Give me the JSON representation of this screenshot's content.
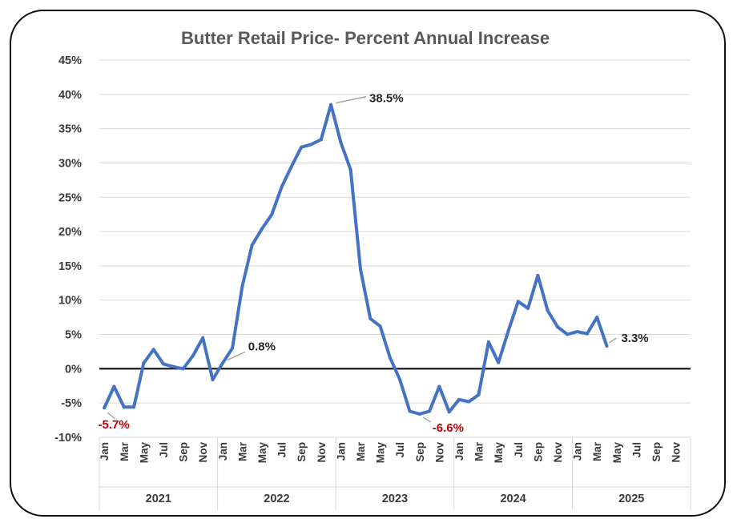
{
  "colors": {
    "line": "#4472C4",
    "grid": "#d9d9d9",
    "zero_line": "#000000",
    "negative_label": "#C00000",
    "positive_label": "#262626",
    "leader": "#a6a6a6"
  },
  "chart_data": {
    "type": "line",
    "title": "Butter Retail Price- Percent Annual Increase",
    "y_tick_labels": [
      "45%",
      "40%",
      "35%",
      "30%",
      "25%",
      "20%",
      "15%",
      "10%",
      "5%",
      "0%",
      "-5%",
      "-10%"
    ],
    "y_ticks": [
      45,
      40,
      35,
      30,
      25,
      20,
      15,
      10,
      5,
      0,
      -5,
      -10
    ],
    "ylim": [
      -10,
      45
    ],
    "grid": true,
    "years": [
      "2021",
      "2022",
      "2023",
      "2024",
      "2025"
    ],
    "month_labels": [
      "Jan",
      "Mar",
      "May",
      "Jul",
      "Sep",
      "Nov"
    ],
    "months_per_year": 12,
    "series": [
      {
        "values": [
          -5.7,
          -2.6,
          -5.6,
          -5.6,
          0.8,
          2.8,
          0.7,
          0.3,
          0.0,
          1.9,
          4.5,
          -1.6,
          0.8,
          3.0,
          12.0,
          18.0,
          20.4,
          22.5,
          26.5,
          29.5,
          32.3,
          32.7,
          33.4,
          38.5,
          33.0,
          29.0,
          14.5,
          7.3,
          6.2,
          1.6,
          -1.6,
          -6.2,
          -6.6,
          -6.2,
          -2.6,
          -6.3,
          -4.5,
          -4.8,
          -3.8,
          3.9,
          0.9,
          5.5,
          9.8,
          8.8,
          13.6,
          8.5,
          6.1,
          5.0,
          5.4,
          5.1,
          7.5,
          3.3
        ]
      }
    ],
    "annotations": [
      {
        "index": 0,
        "text": "-5.7%",
        "color": "negative_label"
      },
      {
        "index": 12,
        "text": "0.8%",
        "color": "positive_label"
      },
      {
        "index": 23,
        "text": "38.5%",
        "color": "positive_label"
      },
      {
        "index": 32,
        "text": "-6.6%",
        "color": "negative_label"
      },
      {
        "index": 51,
        "text": "3.3%",
        "color": "positive_label"
      }
    ]
  }
}
